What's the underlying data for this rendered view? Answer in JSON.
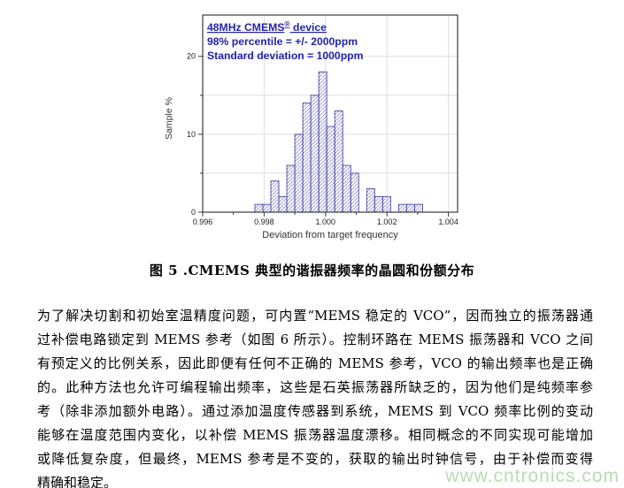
{
  "page": {
    "background": "#ffffff"
  },
  "figure": {
    "caption": "图 5 .CMEMS 典型的谐振器频率的晶圆和份额分布"
  },
  "chart_data": {
    "type": "bar",
    "subtype": "histogram",
    "annotation": {
      "line1_pre": "48MHz CMEMS",
      "line1_sup": "®",
      "line1_post": " device",
      "line2": "98% percentile = +/- 2000ppm",
      "line3": "Standard deviation = 1000ppm",
      "color": "#2424a8"
    },
    "xlabel": "Deviation from target frequency",
    "ylabel": "Sample %",
    "bins": {
      "start": 0.9977,
      "width": 0.00026
    },
    "values": [
      1,
      1,
      4,
      2,
      6,
      10,
      14,
      15,
      18,
      11,
      13,
      6,
      5,
      0,
      3,
      2,
      2,
      0,
      1,
      1,
      1
    ],
    "xlim": [
      0.996,
      1.0043
    ],
    "ylim": [
      0,
      25.3
    ],
    "x_ticks_major": [
      0.996,
      0.998,
      1.0,
      1.002,
      1.004
    ],
    "x_tick_labels": [
      "0.996",
      "0.998",
      "1.000",
      "1.002",
      "1.004"
    ],
    "x_ticks_minor": [
      0.997,
      0.999,
      1.001,
      1.003
    ],
    "y_ticks_major": [
      0,
      10,
      20
    ],
    "y_tick_labels": [
      "0",
      "10",
      "20"
    ],
    "y_ticks_minor": [
      5,
      15
    ],
    "grid": true,
    "gridlines_x": [
      0.998,
      1.0,
      1.002,
      1.004
    ],
    "gridlines_y": [
      5,
      10,
      15,
      20
    ],
    "colors": {
      "bar_hatch": "#9090d0",
      "bar_stroke": "#4848a0",
      "axis": "#3a3a3a",
      "tick_label": "#222222",
      "grid": "#dcdce8",
      "plot_bg": "#ffffff"
    }
  },
  "body": {
    "lines": [
      "为了解决切割和初始室温精度问题，可内置“MEMS 稳定的 VCO”，因而独立的振荡器通",
      "过补偿电路锁定到 MEMS 参考（如图 6 所示）。控制环路在 MEMS 振荡器和 VCO 之间",
      "有预定义的比例关系，因此即便有任何不正确的 MEMS 参考，VCO 的输出频率也是正确",
      "的。此种方法也允许可编程输出频率，这些是石英振荡器所缺乏的，因为他们是纯频率参",
      "考（除非添加额外电路）。通过添加温度传感器到系统，MEMS 到 VCO 频率比例的变动",
      "能够在温度范围内变化，以补偿 MEMS 振荡器温度漂移。相同概念的不同实现可能增加",
      "或降低复杂度，但最终，MEMS 参考是不变的，获取的输出时钟信号，由于补偿而变得",
      "精确和稳定。"
    ]
  },
  "watermark": {
    "text": "www.cntronics.com",
    "color": "#b9dcb2"
  }
}
